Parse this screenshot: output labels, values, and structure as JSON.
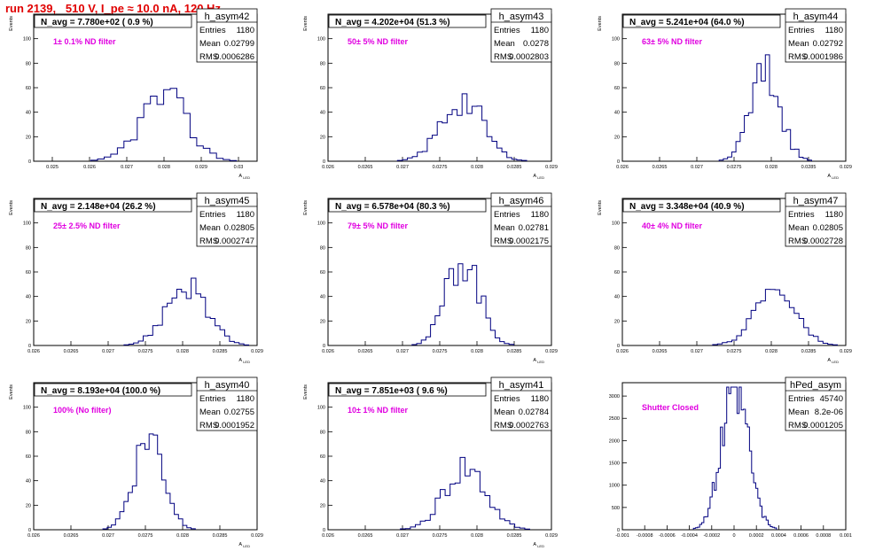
{
  "page": {
    "run_title": "run 2139,   510 V, I_pe ≈ 10.0 nA, 120 Hz"
  },
  "stat_labels": {
    "entries": "Entries",
    "mean": "Mean",
    "rms": "RMS"
  },
  "colors": {
    "histogram_line": "#000080",
    "annotation": "#e000e0",
    "title_text": "#e00000",
    "frame": "#000000"
  },
  "chart_data": [
    {
      "type": "bar",
      "histogram_name": "h_asym42",
      "avg_label": "N_avg = 7.780e+02 ( 0.9 %)",
      "note": "1± 0.1% ND filter",
      "ylabel": "Events",
      "xlabel": "A_LED",
      "xlim": [
        0.0245,
        0.0305
      ],
      "ylim": [
        0,
        120
      ],
      "xticks": [
        0.025,
        0.026,
        0.027,
        0.028,
        0.029,
        0.03
      ],
      "xtick_labels": [
        "0.025",
        "0.026",
        "0.027",
        "0.028",
        "0.029",
        "0.03"
      ],
      "yticks": [
        0,
        20,
        40,
        60,
        80,
        100
      ],
      "stats": {
        "entries": "1180",
        "mean": "0.02799",
        "rms": "0.0006286"
      },
      "mean": 0.02799,
      "sigma": 0.00063,
      "peak": 52,
      "nbins": 22,
      "seed": 42
    },
    {
      "type": "bar",
      "histogram_name": "h_asym43",
      "avg_label": "N_avg = 4.202e+04 (51.3 %)",
      "note": "50± 5% ND filter",
      "ylabel": "Events",
      "xlabel": "A_LED",
      "xlim": [
        0.026,
        0.029
      ],
      "ylim": [
        0,
        120
      ],
      "xticks": [
        0.026,
        0.0265,
        0.027,
        0.0275,
        0.028,
        0.0285,
        0.029
      ],
      "xtick_labels": [
        "0.026",
        "0.0265",
        "0.027",
        "0.0275",
        "0.028",
        "0.0285",
        "0.029"
      ],
      "yticks": [
        0,
        20,
        40,
        60,
        80,
        100
      ],
      "stats": {
        "entries": "1180",
        "mean": "0.0278",
        "rms": "0.0002803"
      },
      "mean": 0.0278,
      "sigma": 0.00028,
      "peak": 50,
      "nbins": 26,
      "seed": 43
    },
    {
      "type": "bar",
      "histogram_name": "h_asym44",
      "avg_label": "N_avg = 5.241e+04 (64.0 %)",
      "note": "63± 5% ND filter",
      "ylabel": "Events",
      "xlabel": "A_LED",
      "xlim": [
        0.026,
        0.029
      ],
      "ylim": [
        0,
        120
      ],
      "xticks": [
        0.026,
        0.0265,
        0.027,
        0.0275,
        0.028,
        0.0285,
        0.029
      ],
      "xtick_labels": [
        "0.026",
        "0.0265",
        "0.027",
        "0.0275",
        "0.028",
        "0.0285",
        "0.029"
      ],
      "yticks": [
        0,
        20,
        40,
        60,
        80,
        100
      ],
      "stats": {
        "entries": "1180",
        "mean": "0.02792",
        "rms": "0.0001986"
      },
      "mean": 0.02792,
      "sigma": 0.0002,
      "peak": 72,
      "nbins": 22,
      "seed": 44
    },
    {
      "type": "bar",
      "histogram_name": "h_asym45",
      "avg_label": "N_avg = 2.148e+04 (26.2 %)",
      "note": "25± 2.5% ND filter",
      "ylabel": "Events",
      "xlabel": "A_LED",
      "xlim": [
        0.026,
        0.029
      ],
      "ylim": [
        0,
        120
      ],
      "xticks": [
        0.026,
        0.0265,
        0.027,
        0.0275,
        0.028,
        0.0285,
        0.029
      ],
      "xtick_labels": [
        "0.026",
        "0.0265",
        "0.027",
        "0.0275",
        "0.028",
        "0.0285",
        "0.029"
      ],
      "yticks": [
        0,
        20,
        40,
        60,
        80,
        100
      ],
      "stats": {
        "entries": "1180",
        "mean": "0.02805",
        "rms": "0.0002747"
      },
      "mean": 0.02805,
      "sigma": 0.00027,
      "peak": 50,
      "nbins": 26,
      "seed": 45
    },
    {
      "type": "bar",
      "histogram_name": "h_asym46",
      "avg_label": "N_avg = 6.578e+04 (80.3 %)",
      "note": "79± 5% ND filter",
      "ylabel": "Events",
      "xlabel": "A_LED",
      "xlim": [
        0.026,
        0.029
      ],
      "ylim": [
        0,
        120
      ],
      "xticks": [
        0.026,
        0.0265,
        0.027,
        0.0275,
        0.028,
        0.0285,
        0.029
      ],
      "xtick_labels": [
        "0.026",
        "0.0265",
        "0.027",
        "0.0275",
        "0.028",
        "0.0285",
        "0.029"
      ],
      "yticks": [
        0,
        20,
        40,
        60,
        80,
        100
      ],
      "stats": {
        "entries": "1180",
        "mean": "0.02781",
        "rms": "0.0002175"
      },
      "mean": 0.02781,
      "sigma": 0.00022,
      "peak": 72,
      "nbins": 22,
      "seed": 46
    },
    {
      "type": "bar",
      "histogram_name": "h_asym47",
      "avg_label": "N_avg = 3.348e+04 (40.9 %)",
      "note": "40± 4% ND filter",
      "ylabel": "Events",
      "xlabel": "A_LED",
      "xlim": [
        0.026,
        0.029
      ],
      "ylim": [
        0,
        120
      ],
      "xticks": [
        0.026,
        0.0265,
        0.027,
        0.0275,
        0.028,
        0.0285,
        0.029
      ],
      "xtick_labels": [
        "0.026",
        "0.0265",
        "0.027",
        "0.0275",
        "0.028",
        "0.0285",
        "0.029"
      ],
      "yticks": [
        0,
        20,
        40,
        60,
        80,
        100
      ],
      "stats": {
        "entries": "1180",
        "mean": "0.02805",
        "rms": "0.0002728"
      },
      "mean": 0.02805,
      "sigma": 0.00027,
      "peak": 46,
      "nbins": 26,
      "seed": 47
    },
    {
      "type": "bar",
      "histogram_name": "h_asym40",
      "avg_label": "N_avg = 8.193e+04 (100.0 %)",
      "note": "100% (No filter)",
      "ylabel": "Events",
      "xlabel": "A_LED",
      "xlim": [
        0.026,
        0.029
      ],
      "ylim": [
        0,
        120
      ],
      "xticks": [
        0.026,
        0.0265,
        0.027,
        0.0275,
        0.028,
        0.0285,
        0.029
      ],
      "xtick_labels": [
        "0.026",
        "0.0265",
        "0.027",
        "0.0275",
        "0.028",
        "0.0285",
        "0.029"
      ],
      "yticks": [
        0,
        20,
        40,
        60,
        80,
        100
      ],
      "stats": {
        "entries": "1180",
        "mean": "0.02755",
        "rms": "0.0001952"
      },
      "mean": 0.02755,
      "sigma": 0.0002,
      "peak": 75,
      "nbins": 22,
      "seed": 40
    },
    {
      "type": "bar",
      "histogram_name": "h_asym41",
      "avg_label": "N_avg = 7.851e+03 ( 9.6 %)",
      "note": "10± 1% ND filter",
      "ylabel": "Events",
      "xlabel": "A_LED",
      "xlim": [
        0.026,
        0.029
      ],
      "ylim": [
        0,
        120
      ],
      "xticks": [
        0.026,
        0.0265,
        0.027,
        0.0275,
        0.028,
        0.0285,
        0.029
      ],
      "xtick_labels": [
        "0.026",
        "0.0265",
        "0.027",
        "0.0275",
        "0.028",
        "0.0285",
        "0.029"
      ],
      "yticks": [
        0,
        20,
        40,
        60,
        80,
        100
      ],
      "stats": {
        "entries": "1180",
        "mean": "0.02784",
        "rms": "0.0002763"
      },
      "mean": 0.02784,
      "sigma": 0.00028,
      "peak": 50,
      "nbins": 26,
      "seed": 41
    },
    {
      "type": "bar",
      "histogram_name": "hPed_asym",
      "avg_label": "",
      "note": "Shutter Closed",
      "ylabel": "",
      "xlabel": "",
      "xlim": [
        -0.001,
        0.001
      ],
      "ylim": [
        0,
        3300
      ],
      "xticks": [
        -0.001,
        -0.0008,
        -0.0006,
        -0.0004,
        -0.0002,
        0,
        0.0002,
        0.0004,
        0.0006,
        0.0008,
        0.001
      ],
      "xtick_labels": [
        "-0.001",
        "-0.0008",
        "-0.0006",
        "-0.0004",
        "-0.0002",
        "0",
        "0.0002",
        "0.0004",
        "0.0006",
        "0.0008",
        "0.001"
      ],
      "yticks": [
        0,
        500,
        1000,
        1500,
        2000,
        2500,
        3000
      ],
      "stats": {
        "entries": "45740",
        "mean": "8.2e-06",
        "rms": "0.0001205"
      },
      "mean": 8.2e-06,
      "sigma": 0.00012,
      "peak": 3150,
      "nbins": 40,
      "seed": 99
    }
  ]
}
